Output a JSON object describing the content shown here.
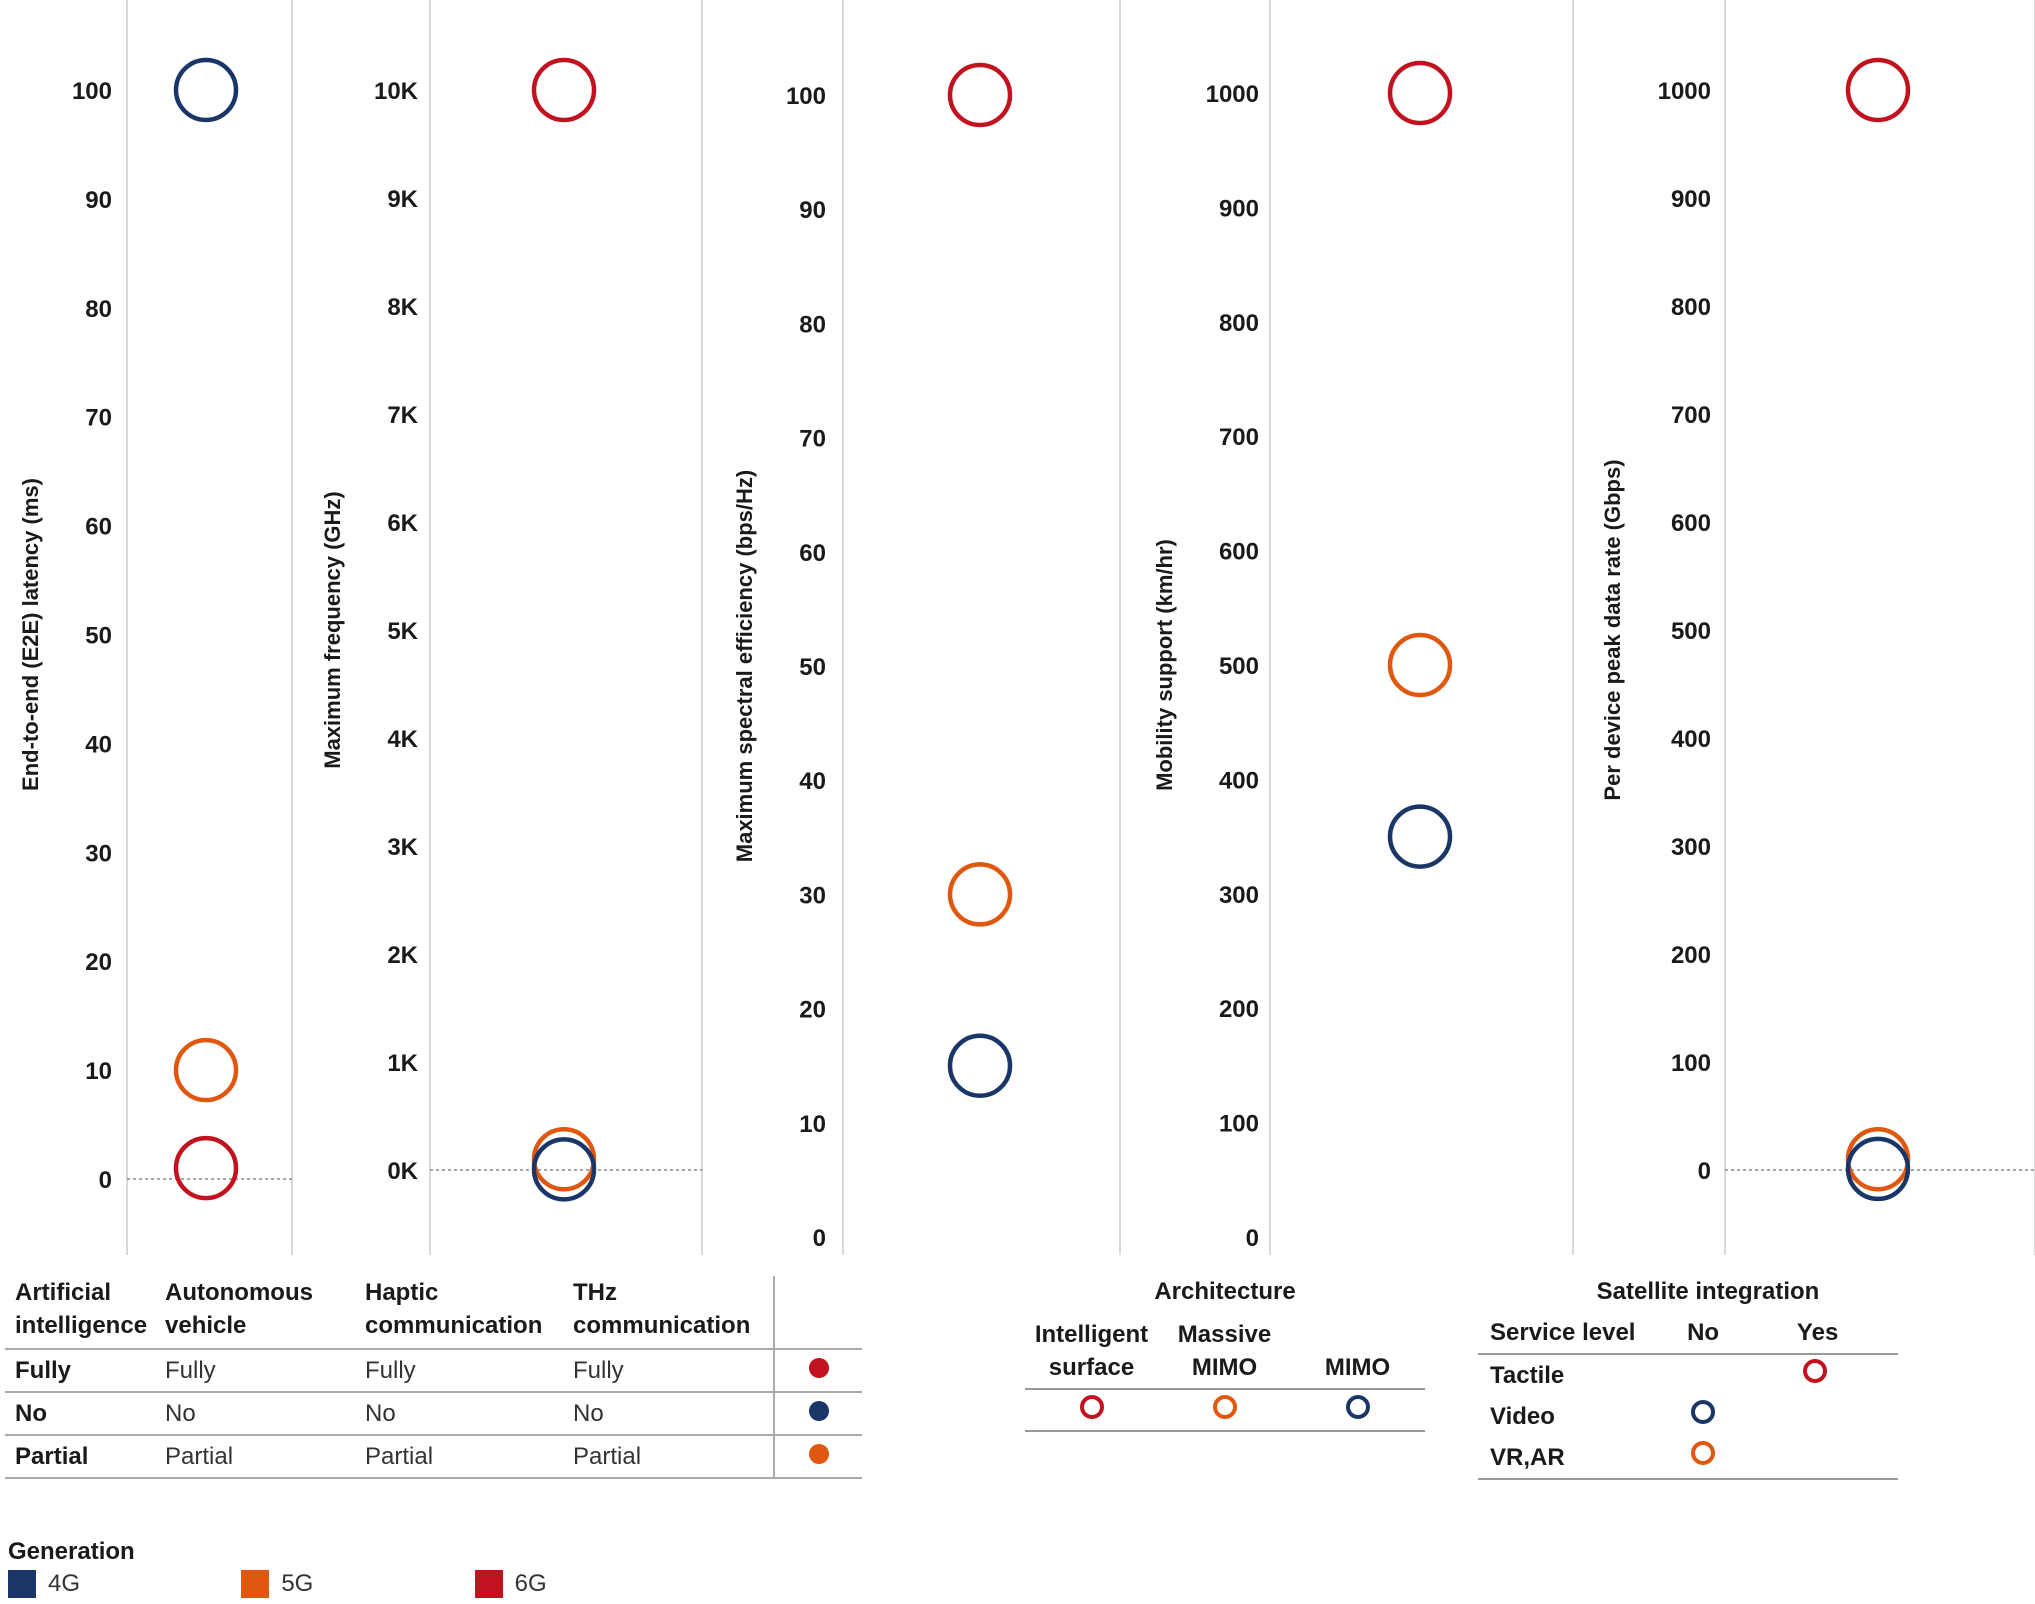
{
  "colors": {
    "4G": "#1a3567",
    "5G": "#e0570f",
    "6G": "#c2121f"
  },
  "chart_data": [
    {
      "type": "scatter",
      "ylabel": "End-to-end (E2E) latency (ms)",
      "ticks": [
        0,
        10,
        20,
        30,
        40,
        50,
        60,
        70,
        80,
        90,
        100
      ],
      "tick_labels": [
        "0",
        "10",
        "20",
        "30",
        "40",
        "50",
        "60",
        "70",
        "80",
        "90",
        "100"
      ],
      "zero_line": true,
      "points": [
        {
          "series": "4G",
          "y": 100
        },
        {
          "series": "5G",
          "y": 10
        },
        {
          "series": "6G",
          "y": 1
        }
      ]
    },
    {
      "type": "scatter",
      "ylabel": "Maximum frequency (GHz)",
      "ticks": [
        0,
        1000,
        2000,
        3000,
        4000,
        5000,
        6000,
        7000,
        8000,
        9000,
        10000
      ],
      "tick_labels": [
        "0K",
        "1K",
        "2K",
        "3K",
        "4K",
        "5K",
        "6K",
        "7K",
        "8K",
        "9K",
        "10K"
      ],
      "zero_line": true,
      "points": [
        {
          "series": "6G",
          "y": 10000
        },
        {
          "series": "5G",
          "y": 100
        },
        {
          "series": "4G",
          "y": 6
        }
      ]
    },
    {
      "type": "scatter",
      "ylabel": "Maximum spectral efficiency (bps/Hz)",
      "ticks": [
        0,
        10,
        20,
        30,
        40,
        50,
        60,
        70,
        80,
        90,
        100
      ],
      "tick_labels": [
        "0",
        "10",
        "20",
        "30",
        "40",
        "50",
        "60",
        "70",
        "80",
        "90",
        "100"
      ],
      "zero_line": false,
      "points": [
        {
          "series": "6G",
          "y": 100
        },
        {
          "series": "5G",
          "y": 30
        },
        {
          "series": "4G",
          "y": 15
        }
      ]
    },
    {
      "type": "scatter",
      "ylabel": "Mobility support (km/hr)",
      "ticks": [
        0,
        100,
        200,
        300,
        400,
        500,
        600,
        700,
        800,
        900,
        1000
      ],
      "tick_labels": [
        "0",
        "100",
        "200",
        "300",
        "400",
        "500",
        "600",
        "700",
        "800",
        "900",
        "1000"
      ],
      "zero_line": false,
      "points": [
        {
          "series": "6G",
          "y": 1000
        },
        {
          "series": "5G",
          "y": 500
        },
        {
          "series": "4G",
          "y": 350
        }
      ]
    },
    {
      "type": "scatter",
      "ylabel": "Per device peak data rate (Gbps)",
      "ticks": [
        0,
        100,
        200,
        300,
        400,
        500,
        600,
        700,
        800,
        900,
        1000
      ],
      "tick_labels": [
        "0",
        "100",
        "200",
        "300",
        "400",
        "500",
        "600",
        "700",
        "800",
        "900",
        "1000"
      ],
      "zero_line": true,
      "points": [
        {
          "series": "6G",
          "y": 1000
        },
        {
          "series": "5G",
          "y": 10
        },
        {
          "series": "4G",
          "y": 1
        }
      ]
    }
  ],
  "legend_table": {
    "headers": [
      [
        "Artificial",
        "intelligence"
      ],
      [
        "Autonomous",
        "vehicle"
      ],
      [
        "Haptic",
        "communication"
      ],
      [
        "THz",
        "communication"
      ]
    ],
    "rows": [
      {
        "cells": [
          "Fully",
          "Fully",
          "Fully",
          "Fully"
        ],
        "series": "6G"
      },
      {
        "cells": [
          "No",
          "No",
          "No",
          "No"
        ],
        "series": "4G"
      },
      {
        "cells": [
          "Partial",
          "Partial",
          "Partial",
          "Partial"
        ],
        "series": "5G"
      }
    ]
  },
  "architecture": {
    "title": "Architecture",
    "items": [
      {
        "label": [
          "Intelligent",
          "surface"
        ],
        "series": "6G"
      },
      {
        "label": [
          "Massive",
          "MIMO"
        ],
        "series": "5G"
      },
      {
        "label": [
          "",
          "MIMO"
        ],
        "series": "4G"
      }
    ]
  },
  "satellite": {
    "title": "Satellite integration",
    "row_header": "Service level",
    "columns": [
      "No",
      "Yes"
    ],
    "rows": [
      {
        "label": "Tactile",
        "col": 1,
        "series": "6G"
      },
      {
        "label": "Video",
        "col": 0,
        "series": "4G"
      },
      {
        "label": "VR,AR",
        "col": 0,
        "series": "5G"
      }
    ]
  },
  "generation": {
    "title": "Generation",
    "items": [
      {
        "label": "4G",
        "series": "4G"
      },
      {
        "label": "5G",
        "series": "5G"
      },
      {
        "label": "6G",
        "series": "6G"
      }
    ]
  }
}
